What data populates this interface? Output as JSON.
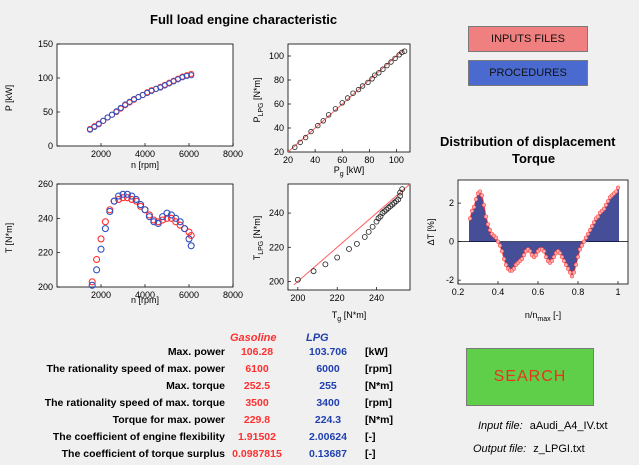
{
  "header": {
    "title": "Full load engine characteristic"
  },
  "buttons": {
    "inputs": "INPUTS FILES",
    "procedures": "PROCEDURES",
    "search": "SEARCH",
    "inputs_color": "#f08080",
    "procedures_color": "#4060c0",
    "search_color": "#5fcf4a",
    "search_text_color": "#e8331e"
  },
  "dist": {
    "title": "Distribution of displacement",
    "subtitle": "Torque"
  },
  "charts": {
    "p_n": {
      "xlabel": "n [rpm]",
      "ylabel": "P [kW]",
      "xticks": [
        "2000",
        "4000",
        "6000",
        "8000"
      ],
      "yticks": [
        "0",
        "50",
        "100",
        "150"
      ]
    },
    "plpg_pg": {
      "xlabel": "Pg [kW]",
      "ylabel": "PLPG [N*m]",
      "xticks": [
        "20",
        "40",
        "60",
        "80",
        "100"
      ],
      "yticks": [
        "20",
        "40",
        "60",
        "80",
        "100"
      ]
    },
    "t_n": {
      "xlabel": "n [rpm]",
      "ylabel": "T [N*m]",
      "xticks": [
        "2000",
        "4000",
        "6000",
        "8000"
      ],
      "yticks": [
        "200",
        "220",
        "240",
        "260"
      ]
    },
    "tlpg_tg": {
      "xlabel": "Tg [N*m]",
      "ylabel": "TLPG [N*m]",
      "xticks": [
        "200",
        "220",
        "240"
      ],
      "yticks": [
        "200",
        "220",
        "240"
      ]
    },
    "dist": {
      "xlabel": "n/nmax [-]",
      "ylabel": "ΔT [%]",
      "xticks": [
        "0.2",
        "0.4",
        "0.6",
        "0.8",
        "1"
      ],
      "yticks": [
        "-2",
        "0",
        "2"
      ]
    }
  },
  "chart_data": [
    {
      "type": "scatter",
      "title": "Full load engine characteristic",
      "xlabel": "n [rpm]",
      "ylabel": "P [kW]",
      "xlim": [
        0,
        8000
      ],
      "ylim": [
        0,
        150
      ],
      "series": [
        {
          "name": "Gasoline",
          "color": "#ff3030",
          "x": [
            1500,
            1700,
            1900,
            2100,
            2300,
            2500,
            2700,
            2900,
            3100,
            3300,
            3500,
            3700,
            3900,
            4100,
            4300,
            4500,
            4700,
            4900,
            5100,
            5300,
            5500,
            5700,
            5900,
            6100
          ],
          "y": [
            25,
            29,
            33,
            37,
            42,
            46,
            50,
            55,
            60,
            64,
            68,
            72,
            75,
            79,
            82,
            84,
            87,
            90,
            93,
            96,
            99,
            102,
            104,
            106
          ]
        },
        {
          "name": "LPG",
          "color": "#3050c0",
          "x": [
            1500,
            1700,
            1900,
            2100,
            2300,
            2500,
            2700,
            2900,
            3100,
            3300,
            3500,
            3700,
            3900,
            4100,
            4300,
            4500,
            4700,
            4900,
            5100,
            5300,
            5500,
            5700,
            5900,
            6100
          ],
          "y": [
            24,
            28,
            32,
            37,
            42,
            46,
            51,
            56,
            61,
            65,
            69,
            72,
            75,
            78,
            81,
            84,
            86,
            89,
            92,
            95,
            98,
            101,
            103,
            104
          ]
        }
      ]
    },
    {
      "type": "scatter",
      "xlabel": "Pg [kW]",
      "ylabel": "PLPG [N*m]",
      "xlim": [
        20,
        110
      ],
      "ylim": [
        20,
        110
      ],
      "points_x": [
        25,
        29,
        33,
        37,
        42,
        46,
        50,
        55,
        60,
        64,
        68,
        72,
        75,
        79,
        82,
        84,
        87,
        90,
        93,
        96,
        99,
        102,
        104,
        106
      ],
      "points_y": [
        24,
        28,
        32,
        37,
        42,
        46,
        51,
        56,
        61,
        65,
        69,
        72,
        75,
        78,
        81,
        84,
        86,
        89,
        92,
        95,
        98,
        101,
        103,
        104
      ]
    },
    {
      "type": "scatter",
      "xlabel": "n [rpm]",
      "ylabel": "T [N*m]",
      "xlim": [
        0,
        8000
      ],
      "ylim": [
        200,
        260
      ],
      "series": [
        {
          "name": "Gasoline",
          "color": "#ff3030",
          "x": [
            1600,
            1800,
            2000,
            2200,
            2400,
            2600,
            2800,
            3000,
            3200,
            3400,
            3600,
            3800,
            4000,
            4200,
            4400,
            4600,
            4800,
            5000,
            5200,
            5400,
            5600,
            5800,
            6000,
            6100
          ],
          "y": [
            203,
            216,
            228,
            238,
            245,
            250,
            251,
            252,
            252,
            251,
            250,
            247,
            245,
            242,
            239,
            238,
            239,
            240,
            240,
            238,
            236,
            234,
            232,
            230
          ]
        },
        {
          "name": "LPG",
          "color": "#3050c0",
          "x": [
            1600,
            1800,
            2000,
            2200,
            2400,
            2600,
            2800,
            3000,
            3200,
            3400,
            3600,
            3800,
            4000,
            4200,
            4400,
            4600,
            4800,
            5000,
            5200,
            5400,
            5600,
            5800,
            6000,
            6100
          ],
          "y": [
            201,
            210,
            222,
            234,
            244,
            250,
            253,
            254,
            254,
            253,
            251,
            248,
            245,
            241,
            238,
            237,
            241,
            243,
            242,
            240,
            238,
            234,
            228,
            224
          ]
        }
      ]
    },
    {
      "type": "scatter",
      "xlabel": "Tg [N*m]",
      "ylabel": "TLPG [N*m]",
      "xlim": [
        195,
        257
      ],
      "ylim": [
        195,
        257
      ],
      "points_x": [
        200,
        208,
        214,
        220,
        226,
        230,
        234,
        236,
        238,
        240,
        241,
        242,
        243,
        244,
        245,
        246,
        247,
        248,
        249,
        250,
        251,
        252,
        252,
        253
      ],
      "points_y": [
        201,
        206,
        210,
        214,
        219,
        222,
        226,
        229,
        232,
        235,
        237,
        238,
        240,
        241,
        242,
        243,
        244,
        245,
        246,
        247,
        248,
        250,
        252,
        254
      ]
    },
    {
      "type": "bar",
      "title": "Distribution of displacement Torque",
      "xlabel": "n/nmax [-]",
      "ylabel": "ΔT [%]",
      "xlim": [
        0.2,
        1.05
      ],
      "ylim": [
        -2.2,
        3.2
      ],
      "x": [
        0.26,
        0.27,
        0.28,
        0.29,
        0.3,
        0.31,
        0.32,
        0.33,
        0.34,
        0.35,
        0.36,
        0.37,
        0.38,
        0.39,
        0.4,
        0.41,
        0.42,
        0.43,
        0.44,
        0.45,
        0.46,
        0.47,
        0.48,
        0.49,
        0.5,
        0.51,
        0.52,
        0.53,
        0.54,
        0.55,
        0.56,
        0.57,
        0.58,
        0.59,
        0.6,
        0.61,
        0.62,
        0.63,
        0.64,
        0.65,
        0.66,
        0.67,
        0.68,
        0.69,
        0.7,
        0.71,
        0.72,
        0.73,
        0.74,
        0.75,
        0.76,
        0.77,
        0.78,
        0.79,
        0.8,
        0.81,
        0.82,
        0.83,
        0.84,
        0.85,
        0.86,
        0.87,
        0.88,
        0.89,
        0.9,
        0.91,
        0.92,
        0.93,
        0.94,
        0.95,
        0.96,
        0.97,
        0.98,
        0.99,
        1.0
      ],
      "values": [
        1.2,
        1.6,
        1.8,
        2.2,
        2.5,
        2.6,
        2.4,
        1.9,
        1.3,
        0.9,
        0.6,
        0.4,
        0.3,
        0.2,
        0.0,
        -0.2,
        -0.5,
        -0.9,
        -1.2,
        -1.4,
        -1.5,
        -1.5,
        -1.4,
        -1.2,
        -1.1,
        -1.0,
        -0.9,
        -0.7,
        -0.5,
        -0.4,
        -0.5,
        -0.7,
        -0.8,
        -0.7,
        -0.5,
        -0.4,
        -0.4,
        -0.5,
        -0.8,
        -1.0,
        -1.1,
        -1.0,
        -0.8,
        -0.6,
        -0.5,
        -0.6,
        -0.8,
        -1.0,
        -1.2,
        -1.4,
        -1.6,
        -1.8,
        -1.6,
        -1.2,
        -0.8,
        -0.4,
        -0.2,
        0.0,
        0.2,
        0.4,
        0.6,
        0.8,
        1.0,
        1.2,
        1.3,
        1.5,
        1.6,
        1.7,
        1.9,
        2.1,
        2.3,
        2.4,
        2.5,
        2.6,
        2.8
      ]
    }
  ],
  "table": {
    "header_gasoline": "Gasoline",
    "header_lpg": "LPG",
    "rows": [
      {
        "label": "Max. power",
        "gasoline": "106.28",
        "lpg": "103.706",
        "unit": "[kW]"
      },
      {
        "label": "The rationality speed of max. power",
        "gasoline": "6100",
        "lpg": "6000",
        "unit": "[rpm]"
      },
      {
        "label": "Max. torque",
        "gasoline": "252.5",
        "lpg": "255",
        "unit": "[N*m]"
      },
      {
        "label": "The rationality speed of max. torque",
        "gasoline": "3500",
        "lpg": "3400",
        "unit": "[rpm]"
      },
      {
        "label": "Torque for max. power",
        "gasoline": "229.8",
        "lpg": "224.3",
        "unit": "[N*m]"
      },
      {
        "label": "The coefficient of engine flexibility",
        "gasoline": "1.91502",
        "lpg": "2.00624",
        "unit": "[-]"
      },
      {
        "label": "The coefficient of torque surplus",
        "gasoline": "0.0987815",
        "lpg": "0.13687",
        "unit": "[-]"
      }
    ]
  },
  "files": {
    "input_label": "Input file:",
    "input_value": "aAudi_A4_IV.txt",
    "output_label": "Output file:",
    "output_value": "z_LPGI.txt"
  }
}
